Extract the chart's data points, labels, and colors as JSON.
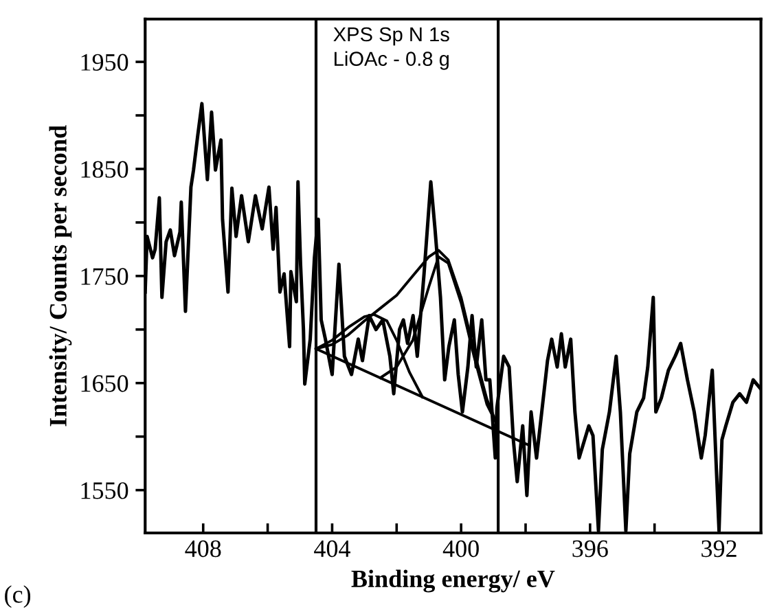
{
  "chart_data": {
    "type": "line",
    "xlabel": "Binding energy/ eV",
    "ylabel": "Intensity/ Counts per second",
    "annotations": [
      "XPS Sp N 1s\nLiOAc - 0.8 g",
      "(c)"
    ],
    "xlim": [
      409.8,
      390.7
    ],
    "ylim": [
      1510,
      1990
    ],
    "xticks": [
      408,
      {
        "value": 406,
        "label": null
      },
      404,
      {
        "value": 402,
        "label": null
      },
      400,
      {
        "value": 398,
        "label": null
      },
      396,
      {
        "value": 394,
        "label": null
      },
      392
    ],
    "yticks": [
      1550,
      {
        "value": 1600,
        "label": null
      },
      1650,
      {
        "value": 1700,
        "label": null
      },
      1750,
      {
        "value": 1800,
        "label": null
      },
      1850,
      {
        "value": 1900,
        "label": null
      },
      1950
    ],
    "grid": false,
    "legend": false,
    "marker": "none",
    "line_style": "solid",
    "ref_lines": [
      {
        "axis": "x",
        "value": 404.5,
        "label": null,
        "color": "#000000"
      },
      {
        "axis": "x",
        "value": 398.85,
        "label": null,
        "color": "#000000"
      }
    ],
    "series": [
      {
        "color": "#000000",
        "x": [
          409.8,
          409.74,
          409.57,
          409.49,
          409.36,
          409.28,
          409.15,
          409.02,
          408.89,
          408.72,
          408.68,
          408.55,
          408.38,
          408.3,
          408.17,
          408.04,
          407.87,
          407.74,
          407.62,
          407.45,
          407.4,
          407.23,
          407.11,
          406.98,
          406.81,
          406.6,
          406.38,
          406.17,
          405.96,
          405.83,
          405.74,
          405.62,
          405.49,
          405.32,
          405.28,
          405.11,
          405.06,
          404.98,
          404.89,
          404.85,
          404.68,
          404.55,
          404.47,
          404.43,
          404.34,
          404.21,
          404.0,
          403.79,
          403.62,
          403.4,
          403.19,
          403.06,
          402.85,
          402.64,
          402.43,
          402.21,
          402.09,
          401.91,
          401.79,
          401.66,
          401.49,
          401.36,
          401.15,
          400.94,
          400.81,
          400.64,
          400.51,
          400.38,
          400.21,
          400.09,
          399.96,
          399.79,
          399.66,
          399.53,
          399.36,
          399.23,
          399.11,
          398.94,
          398.89,
          398.68,
          398.51,
          398.38,
          398.26,
          398.09,
          397.96,
          397.83,
          397.66,
          397.45,
          397.32,
          397.19,
          397.02,
          396.89,
          396.77,
          396.6,
          396.47,
          396.34,
          396.17,
          396.04,
          395.91,
          395.74,
          395.62,
          395.4,
          395.19,
          395.06,
          394.89,
          394.77,
          394.55,
          394.34,
          394.21,
          394.04,
          393.96,
          393.79,
          393.57,
          393.36,
          393.19,
          392.98,
          392.77,
          392.55,
          392.43,
          392.21,
          392.09,
          392.0,
          391.91,
          391.79,
          391.57,
          391.36,
          391.15,
          390.94,
          390.72
        ],
        "values": [
          1735,
          1787,
          1767,
          1775,
          1823,
          1730,
          1782,
          1793,
          1769,
          1791,
          1819,
          1717,
          1833,
          1849,
          1881,
          1911,
          1840,
          1903,
          1849,
          1877,
          1803,
          1735,
          1832,
          1787,
          1825,
          1782,
          1825,
          1794,
          1833,
          1775,
          1814,
          1735,
          1752,
          1684,
          1754,
          1726,
          1838,
          1761,
          1700,
          1649,
          1691,
          1767,
          1794,
          1803,
          1709,
          1691,
          1658,
          1761,
          1675,
          1658,
          1691,
          1671,
          1713,
          1700,
          1709,
          1675,
          1640,
          1700,
          1709,
          1687,
          1713,
          1675,
          1752,
          1838,
          1794,
          1730,
          1653,
          1684,
          1709,
          1658,
          1623,
          1665,
          1713,
          1665,
          1709,
          1653,
          1653,
          1580,
          1627,
          1675,
          1665,
          1597,
          1558,
          1610,
          1545,
          1623,
          1580,
          1636,
          1671,
          1691,
          1665,
          1696,
          1665,
          1691,
          1623,
          1580,
          1597,
          1610,
          1601,
          1512,
          1588,
          1623,
          1675,
          1623,
          1512,
          1584,
          1623,
          1636,
          1665,
          1730,
          1623,
          1636,
          1662,
          1675,
          1687,
          1653,
          1623,
          1580,
          1601,
          1662,
          1575,
          1512,
          1597,
          1610,
          1632,
          1640,
          1632,
          1653,
          1645
        ]
      },
      {
        "color": "#000000",
        "x": [
          404.5,
          397.9
        ],
        "values": [
          1682,
          1592
        ]
      },
      {
        "color": "#000000",
        "x": [
          404.5,
          404.0,
          403.5,
          403.0,
          402.5,
          402.0,
          401.5,
          401.0,
          400.7,
          400.4,
          400.0,
          399.6,
          399.2,
          398.9
        ],
        "values": [
          1682,
          1686,
          1695,
          1708,
          1720,
          1732,
          1750,
          1768,
          1774,
          1765,
          1730,
          1680,
          1635,
          1612
        ]
      },
      {
        "color": "#000000",
        "x": [
          404.5,
          404.0,
          403.5,
          403.0,
          402.7,
          402.3,
          402.0,
          401.6,
          401.2
        ],
        "values": [
          1682,
          1690,
          1702,
          1712,
          1714,
          1708,
          1690,
          1660,
          1637
        ]
      },
      {
        "color": "#000000",
        "x": [
          402.5,
          402.0,
          401.5,
          401.0,
          400.7,
          400.4,
          400.0,
          399.6,
          399.2,
          398.9
        ],
        "values": [
          1655,
          1665,
          1690,
          1740,
          1768,
          1762,
          1725,
          1675,
          1630,
          1612
        ]
      }
    ]
  }
}
